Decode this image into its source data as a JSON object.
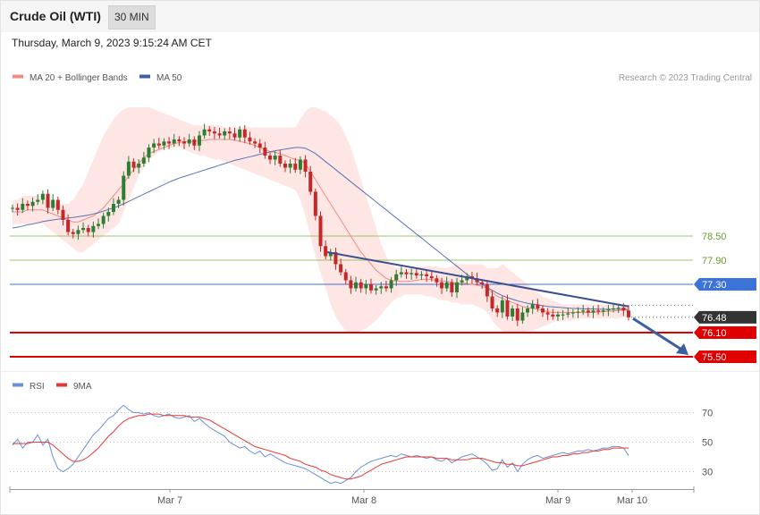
{
  "header": {
    "title": "Crude Oil (WTI)",
    "timeframe": "30 MIN",
    "datetime": "Thursday, March 9, 2023 9:15:24 AM CET"
  },
  "legend": {
    "ma20": "MA 20 + Bollinger Bands",
    "ma50": "MA 50",
    "copyright": "Research © 2023 Trading Central",
    "rsi": "RSI",
    "rsi_ma": "9MA"
  },
  "colors": {
    "bull": "#2e7d32",
    "bear": "#c62828",
    "bollinger_fill": "#fde3e1",
    "ma20": "#f28b82",
    "ma50": "#3f5fa8",
    "pivot": "#3b73d9",
    "support": "#e00000",
    "resistance": "#7cb342",
    "last": "#333333",
    "rsi": "#6b8fd6",
    "rsi_ma": "#e53935"
  },
  "chart_data": [
    {
      "type": "candlestick",
      "title": "Crude Oil (WTI)",
      "timeframe": "30 MIN",
      "x_ticks": [
        "Mar 7",
        "Mar 8",
        "Mar 9",
        "Mar 10"
      ],
      "ylim": [
        75.4,
        81.8
      ],
      "levels": [
        {
          "value": 78.5,
          "label": "78.50",
          "kind": "resistance"
        },
        {
          "value": 77.9,
          "label": "77.90",
          "kind": "resistance"
        },
        {
          "value": 77.3,
          "label": "77.30",
          "kind": "pivot"
        },
        {
          "value": 76.48,
          "label": "76.48",
          "kind": "last"
        },
        {
          "value": 76.1,
          "label": "76.10",
          "kind": "support"
        },
        {
          "value": 75.5,
          "label": "75.50",
          "kind": "support"
        }
      ],
      "trendline": {
        "from": [
          0.465,
          78.1
        ],
        "to": [
          0.91,
          76.75
        ]
      },
      "forecast_arrow": {
        "from": [
          0.915,
          76.45
        ],
        "to": [
          0.995,
          75.5
        ]
      },
      "closes": [
        79.2,
        79.15,
        79.3,
        79.25,
        79.35,
        79.4,
        79.55,
        79.2,
        79.4,
        79.15,
        78.9,
        78.6,
        78.55,
        78.65,
        78.7,
        78.6,
        78.75,
        78.8,
        79.0,
        79.1,
        79.3,
        79.4,
        80.0,
        80.35,
        80.2,
        80.3,
        80.45,
        80.7,
        80.8,
        80.75,
        80.85,
        80.8,
        80.9,
        80.85,
        80.8,
        80.9,
        80.75,
        81.0,
        81.15,
        81.1,
        81.05,
        81.0,
        81.1,
        81.05,
        80.95,
        81.15,
        80.95,
        80.85,
        80.8,
        80.7,
        80.5,
        80.4,
        80.5,
        80.3,
        80.2,
        80.3,
        80.15,
        80.4,
        80.1,
        79.6,
        79.0,
        78.25,
        78.0,
        78.1,
        77.8,
        77.6,
        77.4,
        77.2,
        77.35,
        77.2,
        77.3,
        77.15,
        77.2,
        77.25,
        77.2,
        77.4,
        77.55,
        77.6,
        77.55,
        77.58,
        77.52,
        77.55,
        77.5,
        77.45,
        77.35,
        77.2,
        77.35,
        77.1,
        77.35,
        77.4,
        77.5,
        77.45,
        77.35,
        77.3,
        77.0,
        76.7,
        76.6,
        76.9,
        76.5,
        76.7,
        76.4,
        76.6,
        76.7,
        76.8,
        76.7,
        76.6,
        76.55,
        76.5,
        76.55,
        76.55,
        76.58,
        76.6,
        76.62,
        76.65,
        76.6,
        76.65,
        76.62,
        76.65,
        76.68,
        76.7,
        76.72,
        76.65,
        76.48
      ],
      "bollinger_upper": [
        79.4,
        79.4,
        79.5,
        79.5,
        79.5,
        79.5,
        79.5,
        79.4,
        79.3,
        79.3,
        79.3,
        79.3,
        79.4,
        79.6,
        79.8,
        80.1,
        80.4,
        80.7,
        81.0,
        81.2,
        81.4,
        81.55,
        81.65,
        81.7,
        81.7,
        81.7,
        81.7,
        81.7,
        81.65,
        81.6,
        81.55,
        81.5,
        81.45,
        81.4,
        81.35,
        81.3,
        81.25,
        81.25,
        81.25,
        81.25,
        81.25,
        81.25,
        81.2,
        81.2,
        81.2,
        81.2,
        81.2,
        81.2,
        81.2,
        81.2,
        81.2,
        81.2,
        81.2,
        81.2,
        81.2,
        81.2,
        81.2,
        81.4,
        81.6,
        81.7,
        81.7,
        81.65,
        81.6,
        81.5,
        81.4,
        81.25,
        81.0,
        80.7,
        80.3,
        79.9,
        79.5,
        79.1,
        78.7,
        78.3,
        78.0,
        77.8,
        77.7,
        77.7,
        77.7,
        77.7,
        77.7,
        77.75,
        77.75,
        77.75,
        77.75,
        77.7,
        77.7,
        77.75,
        77.8,
        77.8,
        77.8,
        77.8,
        77.8,
        77.8,
        77.7,
        77.7,
        77.7,
        77.8,
        77.7,
        77.6,
        77.5,
        77.4,
        77.3,
        77.2,
        77.1,
        77.0,
        76.95,
        76.9,
        76.85,
        76.8,
        76.8,
        76.8,
        76.8,
        76.8,
        76.8,
        76.8,
        76.8,
        76.8,
        76.8,
        76.8,
        76.8,
        76.8,
        76.75
      ],
      "bollinger_lower": [
        78.8,
        78.8,
        78.8,
        78.8,
        78.8,
        78.8,
        78.8,
        78.7,
        78.6,
        78.5,
        78.4,
        78.3,
        78.2,
        78.1,
        78.1,
        78.2,
        78.3,
        78.4,
        78.5,
        78.6,
        78.7,
        78.8,
        79.1,
        79.4,
        79.7,
        80.0,
        80.2,
        80.4,
        80.5,
        80.6,
        80.65,
        80.7,
        80.7,
        80.7,
        80.65,
        80.6,
        80.55,
        80.5,
        80.5,
        80.45,
        80.4,
        80.4,
        80.35,
        80.3,
        80.25,
        80.2,
        80.15,
        80.1,
        80.05,
        80.0,
        79.95,
        79.9,
        79.85,
        79.8,
        79.75,
        79.7,
        79.65,
        79.4,
        79.0,
        78.5,
        78.0,
        77.6,
        77.2,
        76.8,
        76.5,
        76.3,
        76.15,
        76.1,
        76.1,
        76.15,
        76.2,
        76.3,
        76.4,
        76.55,
        76.7,
        76.85,
        76.95,
        77.0,
        77.05,
        77.05,
        77.05,
        77.05,
        77.0,
        77.0,
        76.95,
        76.9,
        76.9,
        76.85,
        76.85,
        76.8,
        76.8,
        76.8,
        76.75,
        76.7,
        76.6,
        76.4,
        76.25,
        76.15,
        76.1,
        76.1,
        76.1,
        76.1,
        76.15,
        76.15,
        76.2,
        76.25,
        76.3,
        76.35,
        76.4,
        76.4,
        76.4,
        76.4,
        76.45,
        76.45,
        76.45,
        76.45,
        76.45,
        76.45,
        76.45,
        76.45,
        76.45,
        76.5,
        76.45
      ],
      "ma20": [
        79.1,
        79.1,
        79.1,
        79.15,
        79.15,
        79.15,
        79.15,
        79.1,
        79.05,
        79.0,
        78.95,
        78.9,
        78.85,
        78.85,
        78.9,
        78.95,
        79.0,
        79.1,
        79.2,
        79.35,
        79.5,
        79.65,
        79.8,
        80.0,
        80.15,
        80.3,
        80.45,
        80.55,
        80.6,
        80.65,
        80.7,
        80.75,
        80.8,
        80.82,
        80.85,
        80.85,
        80.85,
        80.87,
        80.88,
        80.9,
        80.9,
        80.9,
        80.9,
        80.9,
        80.88,
        80.86,
        80.82,
        80.8,
        80.75,
        80.7,
        80.65,
        80.6,
        80.58,
        80.55,
        80.5,
        80.45,
        80.4,
        80.38,
        80.3,
        80.1,
        79.9,
        79.7,
        79.5,
        79.3,
        79.1,
        78.9,
        78.7,
        78.5,
        78.3,
        78.1,
        77.95,
        77.8,
        77.65,
        77.55,
        77.45,
        77.4,
        77.38,
        77.37,
        77.37,
        77.38,
        77.4,
        77.42,
        77.43,
        77.42,
        77.4,
        77.38,
        77.38,
        77.35,
        77.33,
        77.33,
        77.32,
        77.3,
        77.28,
        77.25,
        77.2,
        77.1,
        77.0,
        76.95,
        76.9,
        76.85,
        76.8,
        76.75,
        76.72,
        76.7,
        76.68,
        76.65,
        76.62,
        76.6,
        76.6,
        76.6,
        76.6,
        76.6,
        76.6,
        76.6,
        76.6,
        76.6,
        76.61,
        76.62,
        76.63,
        76.64,
        76.65,
        76.66,
        76.65
      ],
      "ma50": [
        78.7,
        78.72,
        78.75,
        78.78,
        78.8,
        78.83,
        78.86,
        78.88,
        78.9,
        78.92,
        78.93,
        78.95,
        78.96,
        78.98,
        79.0,
        79.02,
        79.05,
        79.08,
        79.12,
        79.16,
        79.2,
        79.25,
        79.3,
        79.36,
        79.42,
        79.48,
        79.54,
        79.6,
        79.66,
        79.72,
        79.78,
        79.84,
        79.89,
        79.94,
        79.98,
        80.02,
        80.06,
        80.1,
        80.14,
        80.18,
        80.22,
        80.26,
        80.3,
        80.34,
        80.38,
        80.41,
        80.44,
        80.47,
        80.5,
        80.53,
        80.56,
        80.59,
        80.62,
        80.64,
        80.66,
        80.68,
        80.7,
        80.7,
        80.68,
        80.62,
        80.55,
        80.45,
        80.35,
        80.25,
        80.15,
        80.05,
        79.95,
        79.85,
        79.75,
        79.65,
        79.55,
        79.45,
        79.35,
        79.25,
        79.15,
        79.05,
        78.95,
        78.85,
        78.75,
        78.65,
        78.55,
        78.45,
        78.35,
        78.25,
        78.15,
        78.05,
        77.95,
        77.85,
        77.75,
        77.65,
        77.55,
        77.46,
        77.38,
        77.3,
        77.22,
        77.15,
        77.08,
        77.02,
        76.97,
        76.93,
        76.89,
        76.86,
        76.83,
        76.81,
        76.79,
        76.77,
        76.75,
        76.74,
        76.73,
        76.72,
        76.71,
        76.7,
        76.7,
        76.69,
        76.69,
        76.69,
        76.68,
        76.68,
        76.68,
        76.68,
        76.68,
        76.68,
        76.68
      ]
    },
    {
      "type": "line",
      "title": "RSI",
      "ylim": [
        20,
        80
      ],
      "y_ticks": [
        30,
        50,
        70
      ],
      "series": [
        {
          "name": "RSI",
          "values": [
            48,
            52,
            46,
            50,
            50,
            55,
            48,
            52,
            40,
            32,
            30,
            32,
            35,
            40,
            45,
            50,
            55,
            58,
            62,
            66,
            68,
            72,
            75,
            72,
            70,
            70,
            69,
            70,
            68,
            67,
            68,
            69,
            67,
            66,
            67,
            68,
            64,
            66,
            63,
            60,
            58,
            56,
            54,
            50,
            48,
            46,
            47,
            44,
            42,
            44,
            40,
            42,
            40,
            38,
            36,
            35,
            34,
            33,
            32,
            30,
            28,
            26,
            24,
            22,
            23,
            22,
            24,
            26,
            30,
            33,
            35,
            37,
            38,
            39,
            40,
            41,
            40,
            42,
            41,
            40,
            41,
            40,
            39,
            40,
            38,
            37,
            39,
            36,
            38,
            40,
            41,
            42,
            40,
            38,
            35,
            31,
            32,
            38,
            33,
            36,
            30,
            35,
            38,
            40,
            41,
            39,
            40,
            41,
            42,
            43,
            42,
            43,
            44,
            44,
            45,
            44,
            45,
            46,
            46,
            47,
            47,
            46,
            41
          ]
        },
        {
          "name": "9MA",
          "values": [
            49,
            49,
            49,
            49,
            50,
            50,
            50,
            50,
            48,
            45,
            42,
            39,
            37,
            37,
            38,
            40,
            43,
            46,
            50,
            54,
            57,
            61,
            64,
            66,
            67,
            68,
            68,
            69,
            69,
            69,
            68,
            68,
            68,
            68,
            68,
            67,
            67,
            67,
            66,
            65,
            63,
            61,
            59,
            57,
            55,
            53,
            51,
            49,
            47,
            46,
            45,
            44,
            43,
            42,
            41,
            39,
            38,
            37,
            35,
            34,
            33,
            31,
            30,
            28,
            27,
            26,
            25,
            25,
            26,
            27,
            29,
            31,
            33,
            35,
            36,
            37,
            38,
            39,
            40,
            40,
            40,
            40,
            40,
            40,
            39,
            39,
            39,
            38,
            38,
            38,
            38,
            39,
            39,
            39,
            38,
            37,
            36,
            36,
            35,
            35,
            34,
            34,
            35,
            36,
            37,
            38,
            39,
            40,
            40,
            41,
            41,
            42,
            42,
            43,
            43,
            44,
            44,
            45,
            45,
            46,
            46,
            46,
            46
          ]
        }
      ]
    }
  ]
}
